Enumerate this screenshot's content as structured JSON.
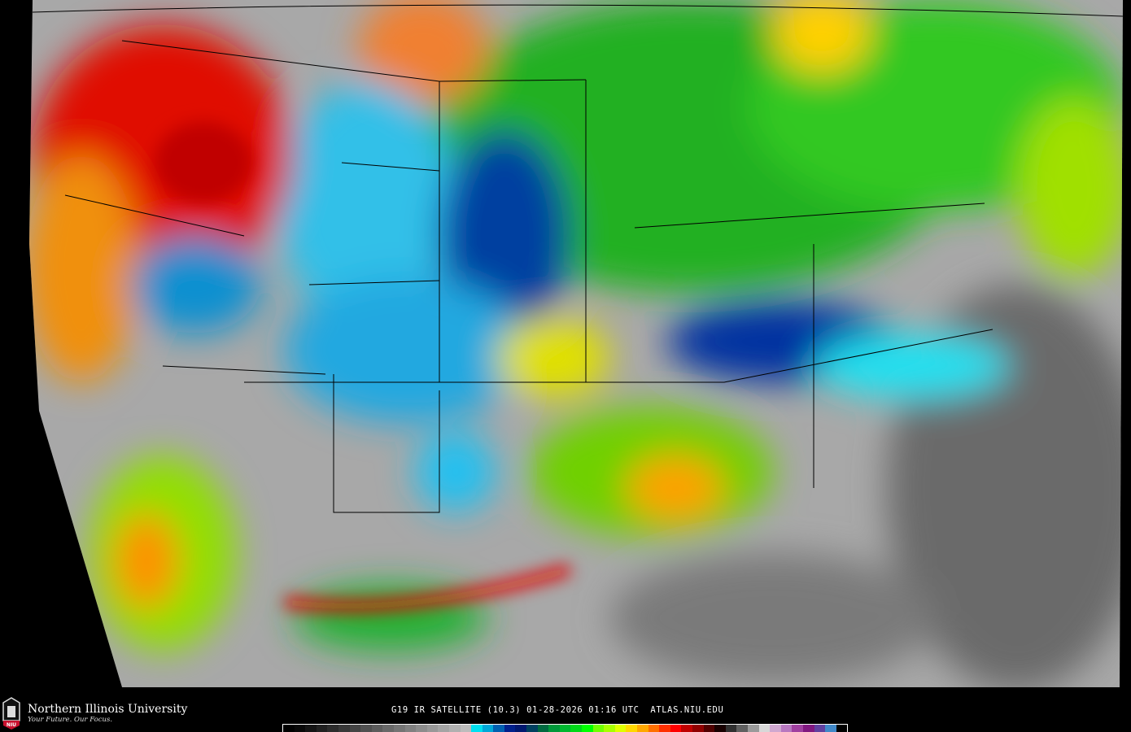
{
  "logo": {
    "name": "Northern Illinois University",
    "tagline": "Your Future. Our Focus.",
    "badge": "NIU"
  },
  "caption": {
    "satellite": "G19 IR SATELLITE (10.3)",
    "date": "01-28-2026",
    "time": "01:16 UTC",
    "site": "ATLAS.NIU.EDU"
  },
  "colorbar": [
    "#000000",
    "#080808",
    "#141414",
    "#202020",
    "#2c2c2c",
    "#383838",
    "#444444",
    "#505050",
    "#5c5c5c",
    "#686868",
    "#747474",
    "#808080",
    "#8c8c8c",
    "#989898",
    "#a4a4a4",
    "#b0b0b0",
    "#bcbcbc",
    "#00e0f0",
    "#00a8d8",
    "#0060b0",
    "#00208c",
    "#001870",
    "#004060",
    "#006a40",
    "#00983a",
    "#00b830",
    "#00d818",
    "#00ff00",
    "#70ff00",
    "#a8ff00",
    "#e0ff00",
    "#ffd800",
    "#ffa800",
    "#ff7000",
    "#ff3000",
    "#ff0000",
    "#c00000",
    "#900000",
    "#500000",
    "#180000",
    "#303030",
    "#606060",
    "#9a9a9a",
    "#d8d8d8",
    "#d0a8d0",
    "#b878c0",
    "#a040a0",
    "#801880",
    "#6040a0",
    "#4088c8",
    "#000000"
  ],
  "colors": {
    "cold_top_red": "#e01000",
    "mid_green": "#20c020",
    "cyan": "#20d8f0",
    "navy": "#002080",
    "clear_gray": "#a8a8a8"
  }
}
